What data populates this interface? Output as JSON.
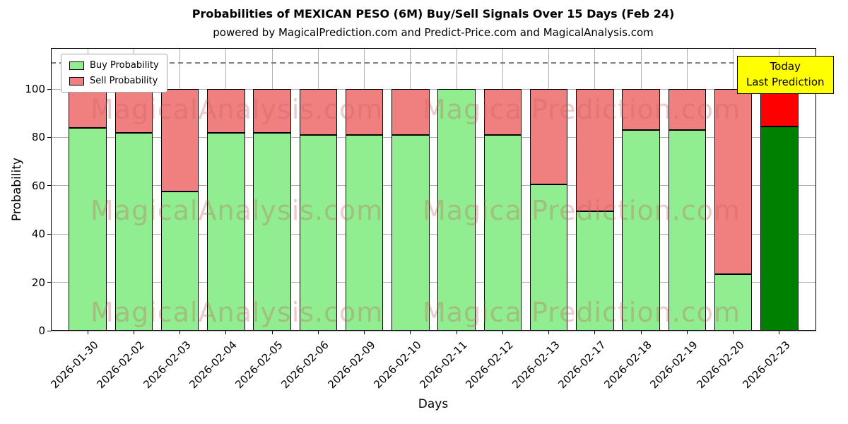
{
  "chart_data": {
    "type": "bar",
    "stacked": true,
    "title": "Probabilities of MEXICAN PESO (6M) Buy/Sell Signals Over 15 Days (Feb 24)",
    "subtitle": "powered by MagicalPrediction.com and Predict-Price.com and MagicalAnalysis.com",
    "xlabel": "Days",
    "ylabel": "Probability",
    "categories": [
      "2026-01-30",
      "2026-02-02",
      "2026-02-03",
      "2026-02-04",
      "2026-02-05",
      "2026-02-06",
      "2026-02-09",
      "2026-02-10",
      "2026-02-11",
      "2026-02-12",
      "2026-02-13",
      "2026-02-17",
      "2026-02-18",
      "2026-02-19",
      "2026-02-20",
      "2026-02-23"
    ],
    "series": [
      {
        "name": "Buy Probability",
        "color": "#90ee90",
        "values": [
          84,
          82,
          57.5,
          82,
          82,
          81,
          81,
          81,
          100,
          81,
          60.5,
          49.5,
          83,
          83,
          23.5,
          84.5
        ]
      },
      {
        "name": "Sell Probability",
        "color": "#f08080",
        "values": [
          16,
          18,
          42.5,
          18,
          18,
          19,
          19,
          19,
          0,
          19,
          39.5,
          50.5,
          17,
          17,
          76.5,
          15.5
        ]
      }
    ],
    "today_bar": {
      "index": 15,
      "buy_color": "#008000",
      "sell_color": "#ff0000"
    },
    "ylim": [
      0,
      117
    ],
    "yticks": [
      0,
      20,
      40,
      60,
      80,
      100
    ],
    "dashed_line_y": 111,
    "grid": true,
    "legend_position": "upper left",
    "annotation": {
      "line1": "Today",
      "line2": "Last Prediction",
      "bg": "#ffff00"
    },
    "watermarks": {
      "left": "MagicalAnalysis.com",
      "right": "Magica Prediction.com"
    },
    "bar_edge_color": "#000000"
  }
}
